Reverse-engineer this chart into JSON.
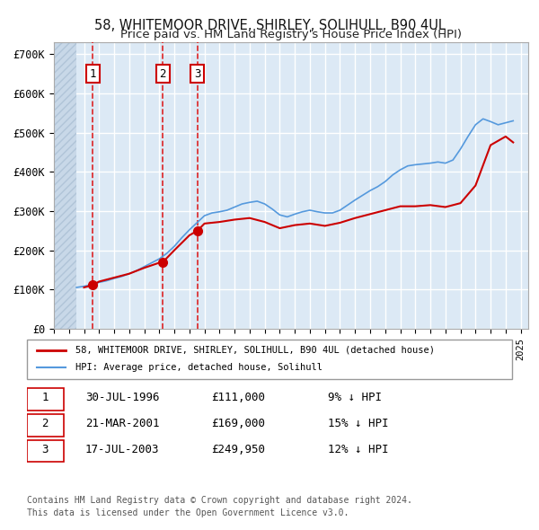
{
  "title1": "58, WHITEMOOR DRIVE, SHIRLEY, SOLIHULL, B90 4UL",
  "title2": "Price paid vs. HM Land Registry's House Price Index (HPI)",
  "ylabel_ticks": [
    "£0",
    "£100K",
    "£200K",
    "£300K",
    "£400K",
    "£500K",
    "£600K",
    "£700K"
  ],
  "ytick_vals": [
    0,
    100000,
    200000,
    300000,
    400000,
    500000,
    600000,
    700000
  ],
  "ylim": [
    0,
    730000
  ],
  "xlim_start": 1994.0,
  "xlim_end": 2025.5,
  "hatch_end": 1995.5,
  "bg_color": "#dce9f5",
  "plot_bg": "#dce9f5",
  "hatch_color": "#c0d0e0",
  "grid_color": "#ffffff",
  "sales": [
    {
      "date_num": 1996.58,
      "price": 111000,
      "label": "1"
    },
    {
      "date_num": 2001.22,
      "price": 169000,
      "label": "2"
    },
    {
      "date_num": 2003.54,
      "price": 249950,
      "label": "3"
    }
  ],
  "hpi_line": {
    "dates": [
      1995.5,
      1996.0,
      1996.5,
      1997.0,
      1997.5,
      1998.0,
      1998.5,
      1999.0,
      1999.5,
      2000.0,
      2000.5,
      2001.0,
      2001.5,
      2002.0,
      2002.5,
      2003.0,
      2003.5,
      2004.0,
      2004.5,
      2005.0,
      2005.5,
      2006.0,
      2006.5,
      2007.0,
      2007.5,
      2008.0,
      2008.5,
      2009.0,
      2009.5,
      2010.0,
      2010.5,
      2011.0,
      2011.5,
      2012.0,
      2012.5,
      2013.0,
      2013.5,
      2014.0,
      2014.5,
      2015.0,
      2015.5,
      2016.0,
      2016.5,
      2017.0,
      2017.5,
      2018.0,
      2018.5,
      2019.0,
      2019.5,
      2020.0,
      2020.5,
      2021.0,
      2021.5,
      2022.0,
      2022.5,
      2023.0,
      2023.5,
      2024.0,
      2024.5
    ],
    "values": [
      105000,
      108000,
      112000,
      118000,
      122000,
      128000,
      133000,
      140000,
      148000,
      158000,
      168000,
      178000,
      192000,
      210000,
      232000,
      252000,
      270000,
      288000,
      295000,
      298000,
      302000,
      310000,
      318000,
      322000,
      325000,
      318000,
      305000,
      290000,
      285000,
      292000,
      298000,
      302000,
      298000,
      295000,
      295000,
      302000,
      315000,
      328000,
      340000,
      352000,
      362000,
      375000,
      392000,
      405000,
      415000,
      418000,
      420000,
      422000,
      425000,
      422000,
      430000,
      458000,
      490000,
      520000,
      535000,
      528000,
      520000,
      525000,
      530000
    ]
  },
  "price_line": {
    "dates": [
      1996.0,
      1996.58,
      1997.0,
      1998.0,
      1999.0,
      2000.0,
      2001.0,
      2001.22,
      2002.0,
      2003.0,
      2003.54,
      2004.0,
      2005.0,
      2006.0,
      2007.0,
      2008.0,
      2009.0,
      2010.0,
      2011.0,
      2012.0,
      2013.0,
      2014.0,
      2015.0,
      2016.0,
      2017.0,
      2018.0,
      2019.0,
      2020.0,
      2021.0,
      2022.0,
      2023.0,
      2024.0,
      2024.5
    ],
    "values": [
      105000,
      111000,
      120000,
      130000,
      140000,
      155000,
      168000,
      169000,
      200000,
      238000,
      249950,
      268000,
      272000,
      278000,
      282000,
      272000,
      256000,
      264000,
      268000,
      262000,
      270000,
      282000,
      292000,
      302000,
      312000,
      312000,
      315000,
      310000,
      320000,
      365000,
      468000,
      490000,
      475000
    ]
  },
  "legend_line1": "58, WHITEMOOR DRIVE, SHIRLEY, SOLIHULL, B90 4UL (detached house)",
  "legend_line2": "HPI: Average price, detached house, Solihull",
  "transactions": [
    {
      "num": "1",
      "date": "30-JUL-1996",
      "price": "£111,000",
      "hpi": "9% ↓ HPI"
    },
    {
      "num": "2",
      "date": "21-MAR-2001",
      "price": "£169,000",
      "hpi": "15% ↓ HPI"
    },
    {
      "num": "3",
      "date": "17-JUL-2003",
      "price": "£249,950",
      "hpi": "12% ↓ HPI"
    }
  ],
  "footer1": "Contains HM Land Registry data © Crown copyright and database right 2024.",
  "footer2": "This data is licensed under the Open Government Licence v3.0.",
  "red_color": "#cc0000",
  "blue_color": "#5599dd",
  "dashed_red": "#dd0000"
}
